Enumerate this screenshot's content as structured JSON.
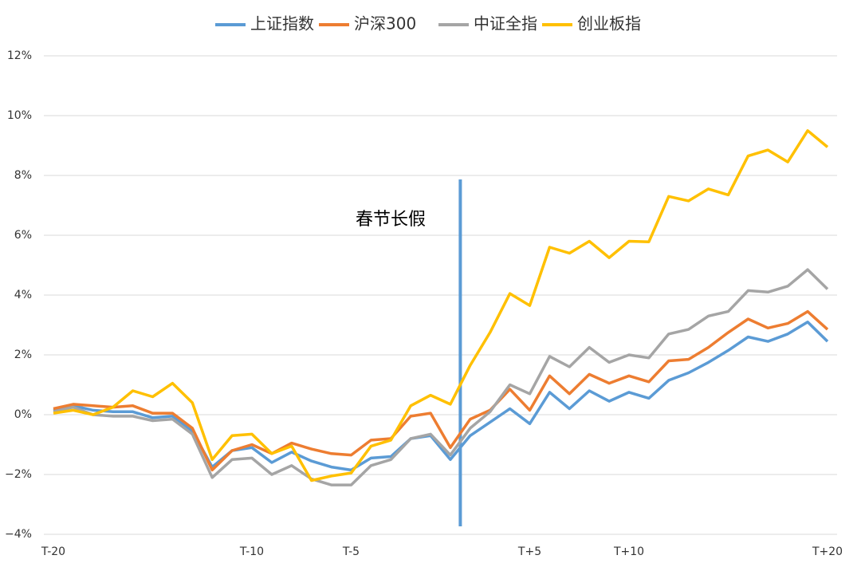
{
  "chart_data": {
    "type": "line",
    "categories": [
      "T-20",
      null,
      null,
      null,
      null,
      null,
      null,
      null,
      null,
      null,
      "T-10",
      null,
      null,
      null,
      null,
      "T-5",
      null,
      null,
      null,
      null,
      null,
      null,
      null,
      null,
      "T+5",
      null,
      null,
      null,
      null,
      "T+10",
      null,
      null,
      null,
      null,
      null,
      null,
      null,
      null,
      null,
      "T+20"
    ],
    "series": [
      {
        "name": "上证指数",
        "color": "#5b9bd5",
        "values": [
          0.15,
          0.3,
          0.15,
          0.1,
          0.1,
          -0.1,
          -0.05,
          -0.55,
          -1.75,
          -1.2,
          -1.1,
          -1.6,
          -1.25,
          -1.55,
          -1.75,
          -1.85,
          -1.45,
          -1.4,
          -0.8,
          -0.7,
          -1.5,
          -0.7,
          -0.25,
          0.2,
          -0.3,
          0.75,
          0.2,
          0.8,
          0.45,
          0.75,
          0.55,
          1.15,
          1.4,
          1.75,
          2.15,
          2.6,
          2.45,
          2.7,
          3.1,
          2.45
        ]
      },
      {
        "name": "沪深300",
        "color": "#ed7d31",
        "values": [
          0.2,
          0.35,
          0.3,
          0.25,
          0.3,
          0.05,
          0.05,
          -0.45,
          -1.85,
          -1.2,
          -1.0,
          -1.3,
          -0.95,
          -1.15,
          -1.3,
          -1.35,
          -0.85,
          -0.8,
          -0.05,
          0.05,
          -1.1,
          -0.15,
          0.15,
          0.85,
          0.15,
          1.3,
          0.7,
          1.35,
          1.05,
          1.3,
          1.1,
          1.8,
          1.85,
          2.25,
          2.75,
          3.2,
          2.9,
          3.05,
          3.45,
          2.85
        ]
      },
      {
        "name": "中证全指",
        "color": "#a5a5a5",
        "values": [
          0.1,
          0.25,
          0.0,
          -0.05,
          -0.05,
          -0.2,
          -0.15,
          -0.65,
          -2.1,
          -1.5,
          -1.45,
          -2.0,
          -1.7,
          -2.15,
          -2.35,
          -2.35,
          -1.7,
          -1.5,
          -0.8,
          -0.65,
          -1.35,
          -0.45,
          0.1,
          1.0,
          0.7,
          1.95,
          1.6,
          2.25,
          1.75,
          2.0,
          1.9,
          2.7,
          2.85,
          3.3,
          3.45,
          4.15,
          4.1,
          4.3,
          4.85,
          4.2
        ]
      },
      {
        "name": "创业板指",
        "color": "#ffc000",
        "values": [
          0.05,
          0.15,
          0.0,
          0.25,
          0.8,
          0.6,
          1.05,
          0.4,
          -1.5,
          -0.7,
          -0.65,
          -1.3,
          -1.05,
          -2.2,
          -2.05,
          -1.95,
          -1.05,
          -0.85,
          0.3,
          0.65,
          0.35,
          1.65,
          2.75,
          4.05,
          3.65,
          5.6,
          5.4,
          5.8,
          5.25,
          5.8,
          5.78,
          7.3,
          7.15,
          7.55,
          7.35,
          8.65,
          8.85,
          8.45,
          9.5,
          8.95
        ]
      }
    ],
    "ylim": [
      -4,
      12
    ],
    "yticks": [
      {
        "value": -4,
        "label": "−4%"
      },
      {
        "value": -2,
        "label": "−2%"
      },
      {
        "value": 0,
        "label": "0%"
      },
      {
        "value": 2,
        "label": "2%"
      },
      {
        "value": 4,
        "label": "4%"
      },
      {
        "value": 6,
        "label": "6%"
      },
      {
        "value": 8,
        "label": "8%"
      },
      {
        "value": 10,
        "label": "10%"
      },
      {
        "value": 12,
        "label": "12%"
      }
    ],
    "grid": true,
    "legend": "top",
    "annotation": "春节长假"
  }
}
